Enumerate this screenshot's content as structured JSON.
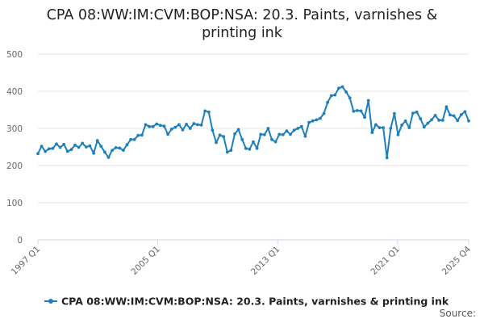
{
  "title_line1": "CPA 08:WW:IM:CVM:BOP:NSA: 20.3. Paints, varnishes &",
  "title_line2": "printing ink",
  "source_label": "Source:",
  "colors": {
    "series": "#1f7fba",
    "grid": "#e6e6e6",
    "axis": "#ccd6eb"
  },
  "chart_data": {
    "type": "line",
    "title": "CPA 08:WW:IM:CVM:BOP:NSA: 20.3. Paints, varnishes & printing ink",
    "xlabel": "",
    "ylabel": "",
    "ylim": [
      0,
      500
    ],
    "yticks": [
      0,
      100,
      200,
      300,
      400,
      500
    ],
    "xticks": [
      "1997 Q1",
      "2005 Q1",
      "2013 Q1",
      "2021 Q1",
      "2025 Q4"
    ],
    "x_range": [
      "1997 Q1",
      "2025 Q4"
    ],
    "grid": true,
    "legend_position": "bottom",
    "series": [
      {
        "name": "CPA 08:WW:IM:CVM:BOP:NSA: 20.3. Paints, varnishes & printing ink",
        "values": [
          232,
          252,
          238,
          245,
          246,
          258,
          249,
          257,
          238,
          243,
          255,
          249,
          260,
          250,
          253,
          233,
          267,
          252,
          236,
          222,
          241,
          248,
          247,
          241,
          256,
          270,
          270,
          281,
          282,
          310,
          305,
          305,
          312,
          308,
          306,
          284,
          298,
          303,
          310,
          296,
          311,
          300,
          313,
          310,
          309,
          347,
          344,
          295,
          262,
          282,
          278,
          236,
          241,
          285,
          297,
          270,
          246,
          244,
          264,
          246,
          284,
          283,
          300,
          270,
          264,
          284,
          283,
          293,
          284,
          295,
          300,
          305,
          279,
          316,
          320,
          323,
          327,
          340,
          370,
          388,
          390,
          408,
          412,
          398,
          382,
          346,
          348,
          347,
          330,
          375,
          289,
          310,
          302,
          302,
          221,
          300,
          340,
          283,
          309,
          320,
          302,
          341,
          344,
          326,
          304,
          314,
          323,
          335,
          322,
          322,
          358,
          336,
          334,
          321,
          337,
          345,
          320
        ]
      }
    ]
  }
}
